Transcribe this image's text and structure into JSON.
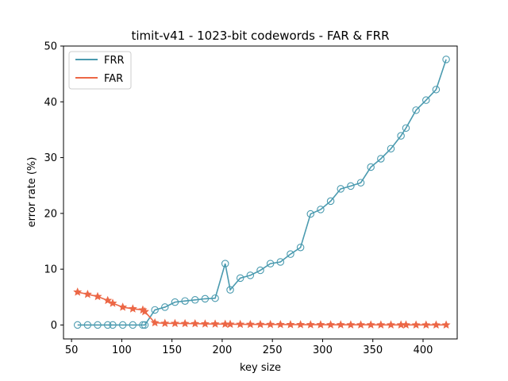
{
  "chart_data": {
    "type": "line",
    "title": "timit-v41 - 1023-bit codewords - FAR & FRR",
    "xlabel": "key size",
    "ylabel": "error rate (%)",
    "xlim": [
      42,
      434
    ],
    "ylim": [
      -2.5,
      50
    ],
    "xticks": [
      50,
      100,
      150,
      200,
      250,
      300,
      350,
      400
    ],
    "yticks": [
      0,
      10,
      20,
      30,
      40,
      50
    ],
    "grid": false,
    "legend": "top-left",
    "series": [
      {
        "name": "FRR",
        "color": "#4a9aaf",
        "marker": "circle-open",
        "x": [
          56,
          66,
          76,
          86,
          91,
          101,
          111,
          121,
          123,
          133,
          143,
          153,
          163,
          173,
          183,
          193,
          203,
          208,
          218,
          228,
          238,
          248,
          258,
          268,
          278,
          288,
          298,
          308,
          318,
          328,
          338,
          348,
          358,
          368,
          378,
          383,
          393,
          403,
          413,
          423
        ],
        "y": [
          0,
          0,
          0,
          0,
          0,
          0,
          0,
          0,
          0,
          2.7,
          3.2,
          4.1,
          4.3,
          4.5,
          4.7,
          4.8,
          11.0,
          6.3,
          8.4,
          8.9,
          9.8,
          11.0,
          11.3,
          12.7,
          13.9,
          19.9,
          20.7,
          22.2,
          24.4,
          24.9,
          25.5,
          28.3,
          29.8,
          31.6,
          33.9,
          35.3,
          38.5,
          40.3,
          42.2,
          47.6
        ]
      },
      {
        "name": "FAR",
        "color": "#ec6746",
        "marker": "star",
        "x": [
          56,
          66,
          76,
          86,
          91,
          101,
          111,
          121,
          123,
          133,
          143,
          153,
          163,
          173,
          183,
          193,
          203,
          208,
          218,
          228,
          238,
          248,
          258,
          268,
          278,
          288,
          298,
          308,
          318,
          328,
          338,
          348,
          358,
          368,
          378,
          383,
          393,
          403,
          413,
          423
        ],
        "y": [
          5.9,
          5.5,
          5.1,
          4.4,
          3.9,
          3.2,
          2.9,
          2.7,
          2.4,
          0.4,
          0.3,
          0.28,
          0.26,
          0.24,
          0.2,
          0.18,
          0.15,
          0.14,
          0.12,
          0.11,
          0.1,
          0.09,
          0.08,
          0.07,
          0.06,
          0.05,
          0.05,
          0.04,
          0.04,
          0.03,
          0.03,
          0.03,
          0.02,
          0.02,
          0.02,
          0.02,
          0.01,
          0.01,
          0.01,
          0.01
        ]
      }
    ]
  }
}
